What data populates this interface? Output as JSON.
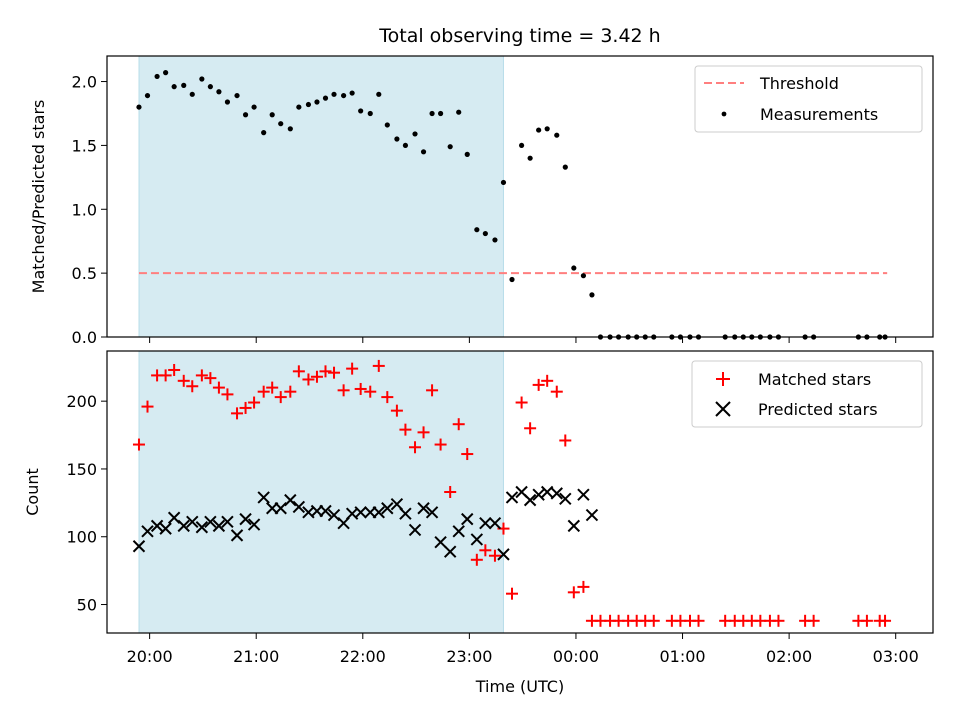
{
  "chart_data": [
    {
      "type": "scatter",
      "title": "Total observing time = 3.42 h",
      "ylabel": "Matched/Predicted stars",
      "xlabel": "",
      "ylim": [
        0,
        2.2
      ],
      "xlim_hours": [
        19.6,
        27.35
      ],
      "yticks": [
        0.0,
        0.5,
        1.0,
        1.5,
        2.0
      ],
      "ytick_labels": [
        "0.0",
        "0.5",
        "1.0",
        "1.5",
        "2.0"
      ],
      "shaded_region_hours": [
        19.9,
        23.32
      ],
      "shade_color": "#add8e6",
      "threshold": {
        "label": "Threshold",
        "value": 0.5,
        "x_range_hours": [
          19.9,
          26.92
        ],
        "color": "#ff7f7f"
      },
      "series": [
        {
          "name": "Measurements",
          "color": "#000000",
          "marker": "dot",
          "x": [
            19.9,
            19.98,
            20.07,
            20.15,
            20.23,
            20.32,
            20.4,
            20.49,
            20.57,
            20.65,
            20.73,
            20.82,
            20.9,
            20.98,
            21.07,
            21.15,
            21.23,
            21.32,
            21.4,
            21.49,
            21.57,
            21.65,
            21.73,
            21.82,
            21.9,
            21.98,
            22.07,
            22.15,
            22.23,
            22.32,
            22.4,
            22.49,
            22.57,
            22.65,
            22.73,
            22.82,
            22.9,
            22.98,
            23.07,
            23.15,
            23.24,
            23.32,
            23.4,
            23.49,
            23.57,
            23.65,
            23.73,
            23.82,
            23.9,
            23.98,
            24.07,
            24.15,
            24.23,
            24.32,
            24.4,
            24.49,
            24.57,
            24.65,
            24.73,
            24.9,
            24.98,
            25.07,
            25.15,
            25.4,
            25.49,
            25.57,
            25.65,
            25.73,
            25.82,
            25.9,
            26.15,
            26.23,
            26.65,
            26.73,
            26.85,
            26.9
          ],
          "y": [
            1.8,
            1.89,
            2.04,
            2.07,
            1.96,
            1.97,
            1.9,
            2.02,
            1.96,
            1.92,
            1.84,
            1.89,
            1.74,
            1.8,
            1.6,
            1.74,
            1.67,
            1.63,
            1.8,
            1.82,
            1.84,
            1.87,
            1.9,
            1.89,
            1.91,
            1.77,
            1.75,
            1.9,
            1.66,
            1.55,
            1.5,
            1.59,
            1.45,
            1.75,
            1.75,
            1.49,
            1.76,
            1.43,
            0.84,
            0.81,
            0.76,
            1.21,
            0.45,
            1.5,
            1.4,
            1.62,
            1.63,
            1.58,
            1.33,
            0.54,
            0.48,
            0.33,
            0,
            0,
            0,
            0,
            0,
            0,
            0,
            0,
            0,
            0,
            0,
            0,
            0,
            0,
            0,
            0,
            0,
            0,
            0,
            0,
            0,
            0,
            0,
            0
          ]
        }
      ]
    },
    {
      "type": "scatter",
      "title": "",
      "ylabel": "Count",
      "xlabel": "Time (UTC)",
      "ylim": [
        29,
        237
      ],
      "xlim_hours": [
        19.6,
        27.35
      ],
      "yticks": [
        50,
        100,
        150,
        200
      ],
      "ytick_labels": [
        "50",
        "100",
        "150",
        "200"
      ],
      "xticks_hours": [
        20,
        21,
        22,
        23,
        24,
        25,
        26,
        27
      ],
      "xtick_labels": [
        "20:00",
        "21:00",
        "22:00",
        "23:00",
        "00:00",
        "01:00",
        "02:00",
        "03:00"
      ],
      "shaded_region_hours": [
        19.9,
        23.32
      ],
      "shade_color": "#add8e6",
      "series": [
        {
          "name": "Matched stars",
          "color": "#ff0000",
          "marker": "plus",
          "x": [
            19.9,
            19.98,
            20.07,
            20.15,
            20.23,
            20.32,
            20.4,
            20.49,
            20.57,
            20.65,
            20.73,
            20.82,
            20.9,
            20.98,
            21.07,
            21.15,
            21.23,
            21.32,
            21.4,
            21.49,
            21.57,
            21.65,
            21.73,
            21.82,
            21.9,
            21.98,
            22.07,
            22.15,
            22.23,
            22.32,
            22.4,
            22.49,
            22.57,
            22.65,
            22.73,
            22.82,
            22.9,
            22.98,
            23.07,
            23.15,
            23.24,
            23.32,
            23.4,
            23.49,
            23.57,
            23.65,
            23.73,
            23.82,
            23.9,
            23.98,
            24.07,
            24.15,
            24.23,
            24.32,
            24.4,
            24.49,
            24.57,
            24.65,
            24.73,
            24.9,
            24.98,
            25.07,
            25.15,
            25.4,
            25.49,
            25.57,
            25.65,
            25.73,
            25.82,
            25.9,
            26.15,
            26.23,
            26.65,
            26.73,
            26.85,
            26.9
          ],
          "y": [
            168,
            196,
            219,
            219,
            223,
            215,
            211,
            219,
            217,
            210,
            205,
            191,
            195,
            199,
            207,
            210,
            203,
            207,
            222,
            216,
            218,
            222,
            221,
            208,
            224,
            209,
            207,
            226,
            203,
            193,
            179,
            166,
            177,
            208,
            168,
            133,
            183,
            161,
            83,
            90,
            86,
            106,
            58,
            199,
            180,
            212,
            215,
            207,
            171,
            59,
            63,
            38,
            38,
            38,
            38,
            38,
            38,
            38,
            38,
            38,
            38,
            38,
            38,
            38,
            38,
            38,
            38,
            38,
            38,
            38,
            38,
            38,
            38,
            38,
            38,
            38
          ]
        },
        {
          "name": "Predicted stars",
          "color": "#000000",
          "marker": "x",
          "x": [
            19.9,
            19.98,
            20.07,
            20.15,
            20.23,
            20.32,
            20.4,
            20.49,
            20.57,
            20.65,
            20.73,
            20.82,
            20.9,
            20.98,
            21.07,
            21.15,
            21.23,
            21.32,
            21.4,
            21.49,
            21.57,
            21.65,
            21.73,
            21.82,
            21.9,
            21.98,
            22.07,
            22.15,
            22.23,
            22.32,
            22.4,
            22.49,
            22.57,
            22.65,
            22.73,
            22.82,
            22.9,
            22.98,
            23.07,
            23.15,
            23.24,
            23.32,
            23.4,
            23.49,
            23.57,
            23.65,
            23.73,
            23.82,
            23.9,
            23.98,
            24.07,
            24.15
          ],
          "y": [
            93,
            104,
            108,
            106,
            114,
            108,
            111,
            107,
            111,
            108,
            111,
            101,
            113,
            109,
            129,
            121,
            121,
            127,
            122,
            118,
            119,
            119,
            116,
            110,
            117,
            118,
            118,
            118,
            121,
            124,
            117,
            105,
            121,
            118,
            96,
            89,
            104,
            113,
            98,
            110,
            110,
            87,
            129,
            133,
            127,
            131,
            133,
            132,
            128,
            108,
            131,
            116
          ]
        }
      ]
    }
  ],
  "legend_top": {
    "threshold_label": "Threshold",
    "measurements_label": "Measurements"
  },
  "legend_bottom": {
    "matched_label": "Matched stars",
    "predicted_label": "Predicted stars"
  },
  "title": "Total observing time = 3.42 h",
  "top_ylabel": "Matched/Predicted stars",
  "bottom_ylabel": "Count",
  "xlabel": "Time (UTC)"
}
